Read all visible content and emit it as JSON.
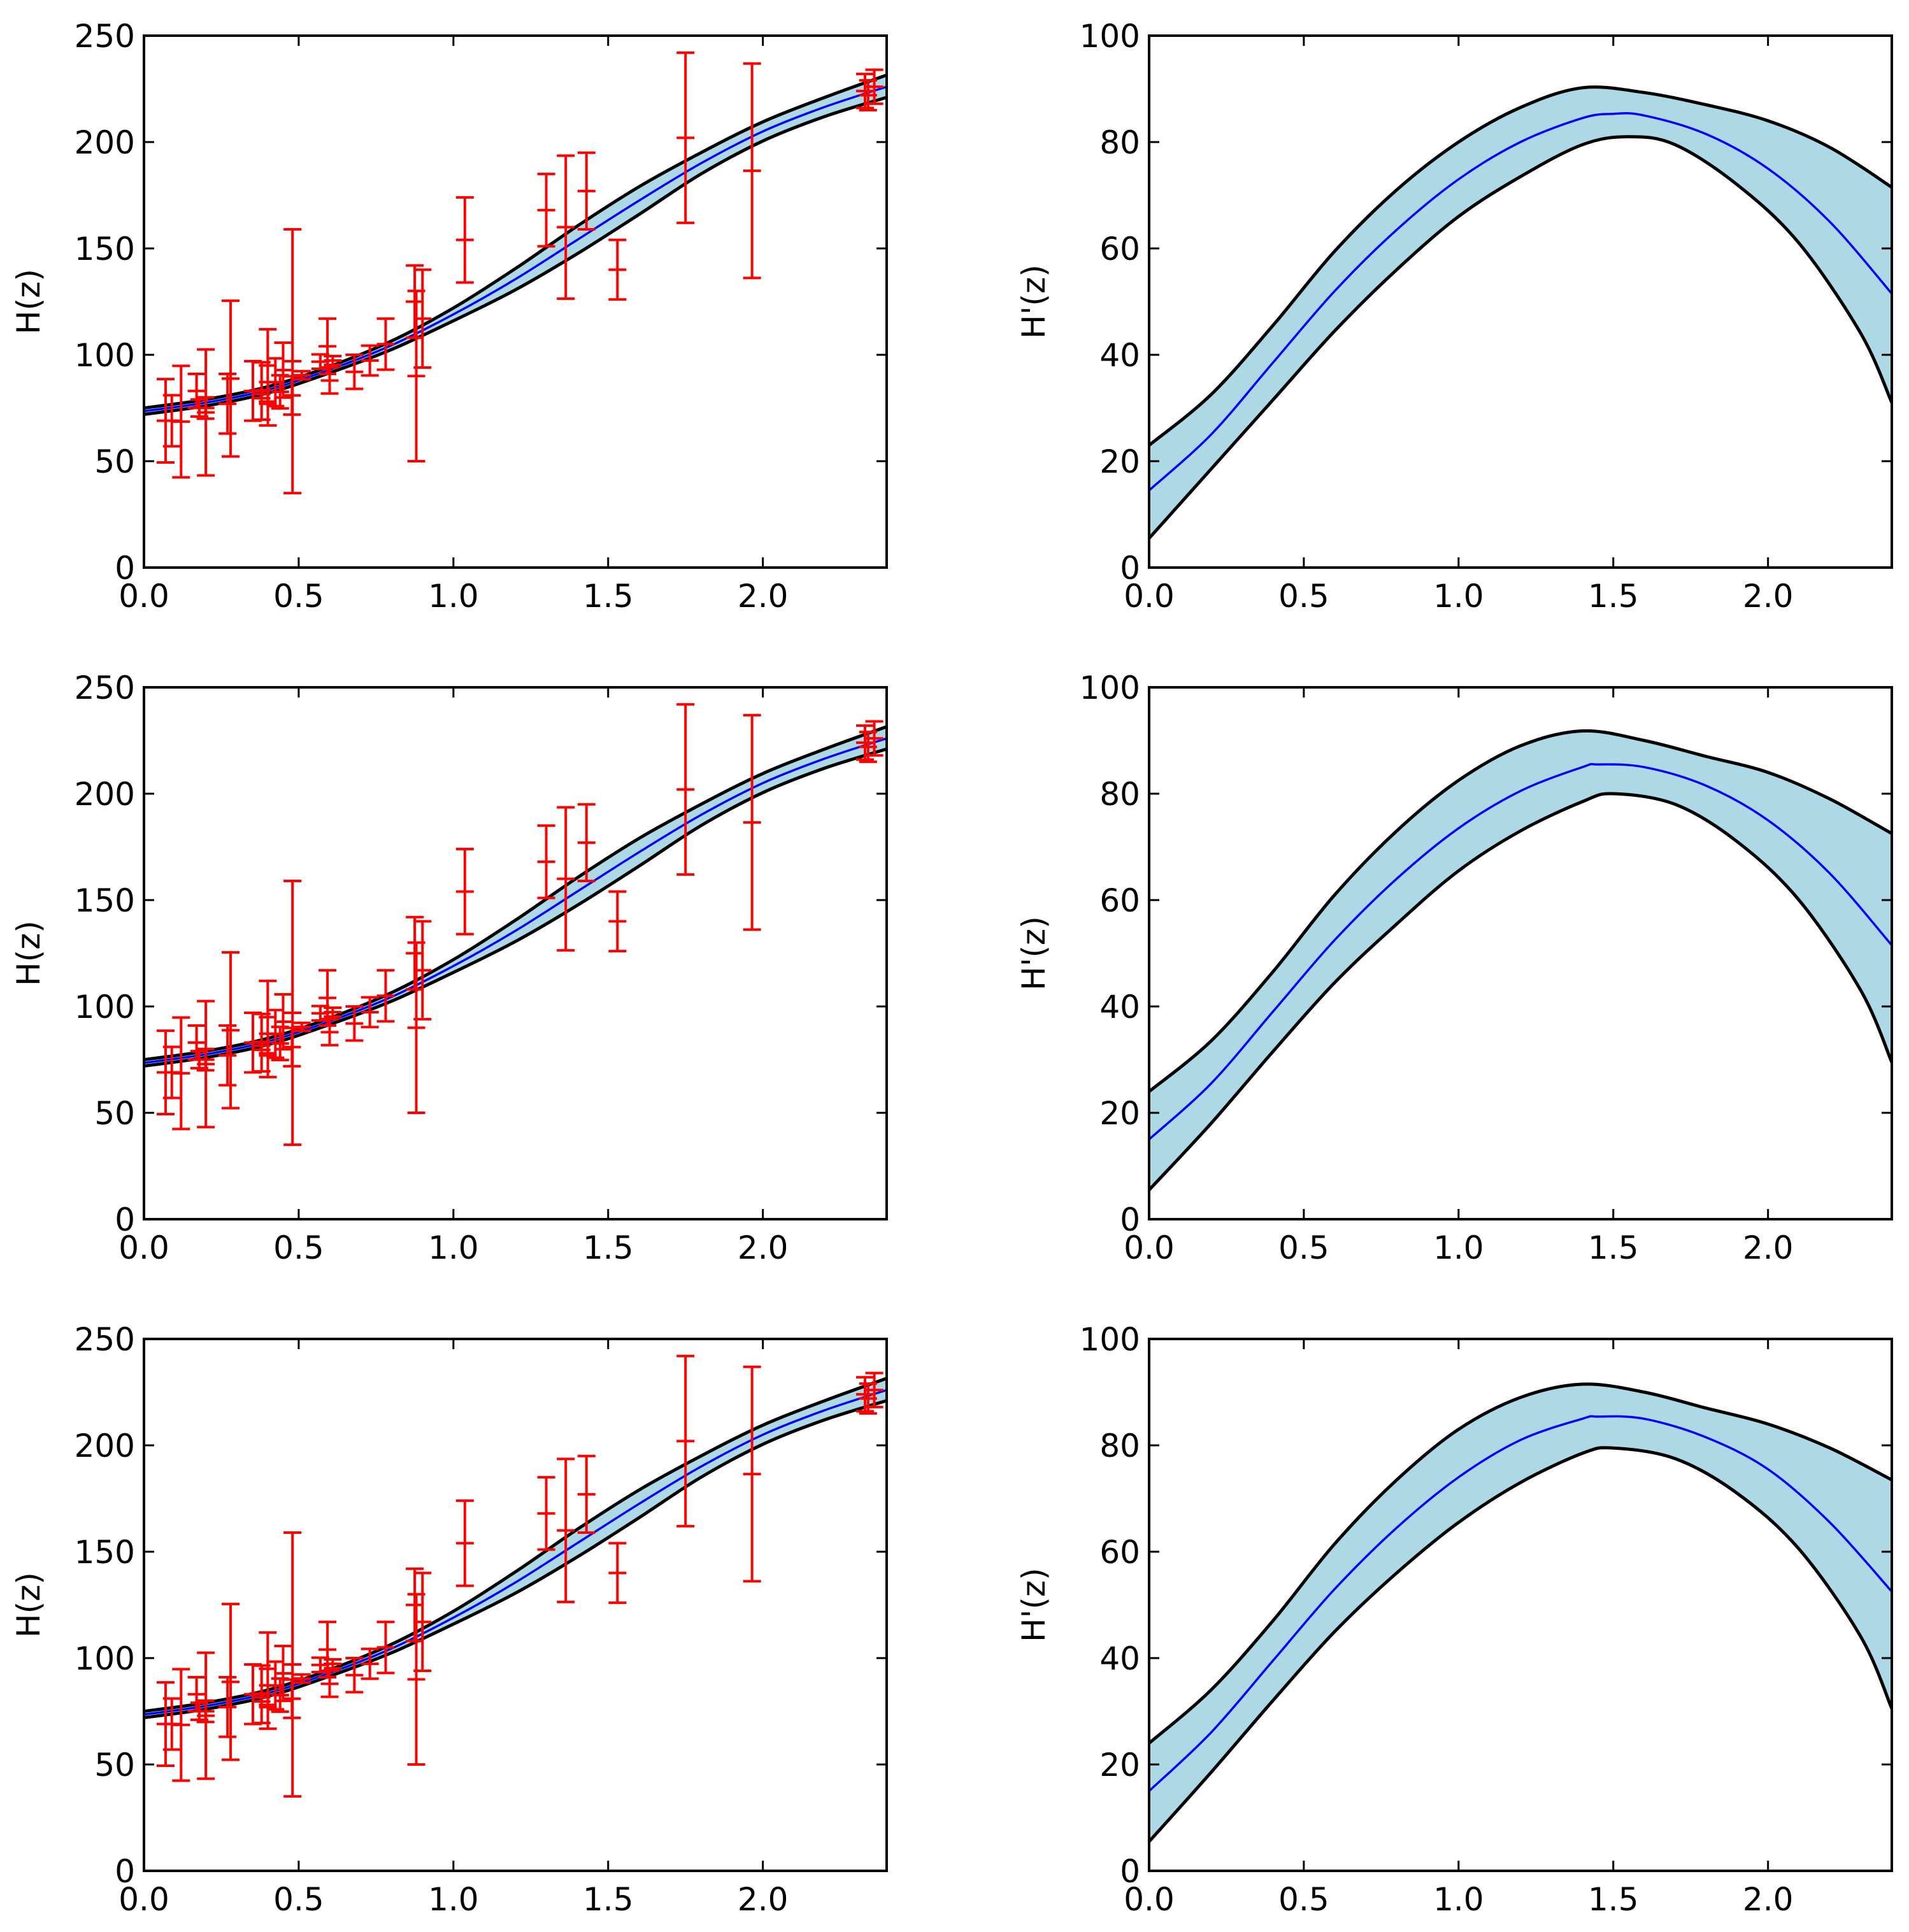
{
  "colors": {
    "band_fill": "#add8e6",
    "band_edge": "#000000",
    "mean_line": "#0000ff",
    "data_points": "#ff0000",
    "axes": "#000000"
  },
  "h_data": {
    "z": [
      0.07,
      0.09,
      0.12,
      0.17,
      0.179,
      0.199,
      0.2,
      0.27,
      0.28,
      0.352,
      0.38,
      0.3802,
      0.4,
      0.4004,
      0.4247,
      0.44,
      0.4497,
      0.4783,
      0.48,
      0.51,
      0.57,
      0.593,
      0.6,
      0.61,
      0.68,
      0.73,
      0.781,
      0.875,
      0.88,
      0.9,
      1.037,
      1.3,
      1.363,
      1.43,
      1.53,
      1.75,
      1.965,
      2.33,
      2.34,
      2.36
    ],
    "H": [
      69,
      69,
      68.6,
      83,
      75,
      75,
      72.9,
      77,
      88.8,
      83,
      81.5,
      83,
      95,
      77,
      87.1,
      82.6,
      92.8,
      80.9,
      97,
      90.4,
      96.8,
      104,
      87.9,
      97.3,
      92,
      97.3,
      105,
      125,
      90,
      117,
      154,
      168,
      160,
      177,
      140,
      202,
      186.5,
      224,
      222,
      226
    ],
    "err": [
      19.6,
      12,
      26.2,
      8,
      4,
      5,
      29.6,
      14,
      36.6,
      14,
      1.9,
      13.5,
      17,
      10.2,
      11.2,
      7.8,
      12.9,
      9,
      62,
      1.9,
      3.4,
      13,
      6.1,
      2.1,
      8,
      7,
      12,
      17,
      40,
      23,
      20,
      17,
      33.6,
      18,
      14,
      40,
      50.4,
      8,
      7,
      8
    ]
  },
  "charts": [
    {
      "id": "top-left",
      "type": "line",
      "x_domain": [
        0.0,
        2.4
      ],
      "ylim": [
        0,
        250
      ],
      "ylabel": "H(z)",
      "xticks": [
        "0.0",
        "0.5",
        "1.0",
        "1.5",
        "2.0"
      ],
      "yticks": [
        "0",
        "50",
        "100",
        "150",
        "200",
        "250"
      ],
      "show_data": true,
      "mean": [
        [
          0,
          73.5
        ],
        [
          0.2,
          77.5
        ],
        [
          0.4,
          83.5
        ],
        [
          0.6,
          93
        ],
        [
          0.8,
          104.5
        ],
        [
          1.0,
          119
        ],
        [
          1.2,
          135.5
        ],
        [
          1.4,
          154
        ],
        [
          1.6,
          172.5
        ],
        [
          1.8,
          190
        ],
        [
          2.0,
          205
        ],
        [
          2.2,
          216.5
        ],
        [
          2.4,
          226
        ]
      ],
      "upper": [
        [
          0,
          75
        ],
        [
          0.2,
          79
        ],
        [
          0.4,
          85
        ],
        [
          0.6,
          94.5
        ],
        [
          0.8,
          106.5
        ],
        [
          1.0,
          122
        ],
        [
          1.2,
          140.5
        ],
        [
          1.4,
          160.5
        ],
        [
          1.6,
          179
        ],
        [
          1.8,
          195
        ],
        [
          2.0,
          209.5
        ],
        [
          2.2,
          221
        ],
        [
          2.4,
          231.5
        ]
      ],
      "lower": [
        [
          0,
          72
        ],
        [
          0.2,
          76
        ],
        [
          0.4,
          82
        ],
        [
          0.6,
          91.5
        ],
        [
          0.8,
          102.5
        ],
        [
          1.0,
          116
        ],
        [
          1.2,
          130.5
        ],
        [
          1.4,
          147.5
        ],
        [
          1.6,
          166
        ],
        [
          1.8,
          185
        ],
        [
          2.0,
          200.5
        ],
        [
          2.2,
          212
        ],
        [
          2.4,
          221
        ]
      ]
    },
    {
      "id": "top-right",
      "type": "line",
      "x_domain": [
        0.0,
        2.4
      ],
      "ylim": [
        0,
        100
      ],
      "ylabel": "H'(z)",
      "xticks": [
        "0.0",
        "0.5",
        "1.0",
        "1.5",
        "2.0"
      ],
      "yticks": [
        "0",
        "20",
        "40",
        "60",
        "80",
        "100"
      ],
      "show_data": false,
      "mean": [
        [
          0,
          14.5
        ],
        [
          0.2,
          25
        ],
        [
          0.4,
          38.5
        ],
        [
          0.6,
          52
        ],
        [
          0.8,
          63.5
        ],
        [
          1.0,
          73
        ],
        [
          1.2,
          80
        ],
        [
          1.4,
          84.5
        ],
        [
          1.5,
          85.3
        ],
        [
          1.6,
          85
        ],
        [
          1.8,
          81.5
        ],
        [
          2.0,
          75
        ],
        [
          2.2,
          65
        ],
        [
          2.4,
          51.5
        ]
      ],
      "upper": [
        [
          0,
          23
        ],
        [
          0.2,
          32.5
        ],
        [
          0.4,
          45.5
        ],
        [
          0.6,
          59.5
        ],
        [
          0.8,
          71
        ],
        [
          1.0,
          80
        ],
        [
          1.2,
          86.5
        ],
        [
          1.4,
          90.2
        ],
        [
          1.6,
          89.3
        ],
        [
          1.8,
          87
        ],
        [
          2.0,
          84
        ],
        [
          2.2,
          79
        ],
        [
          2.4,
          71.5
        ]
      ],
      "lower": [
        [
          0,
          5.5
        ],
        [
          0.2,
          18.5
        ],
        [
          0.4,
          31.5
        ],
        [
          0.6,
          44.5
        ],
        [
          0.8,
          56
        ],
        [
          1.0,
          66
        ],
        [
          1.2,
          73.5
        ],
        [
          1.4,
          79.5
        ],
        [
          1.55,
          81
        ],
        [
          1.7,
          79.5
        ],
        [
          1.9,
          72
        ],
        [
          2.1,
          61
        ],
        [
          2.3,
          44
        ],
        [
          2.4,
          31
        ]
      ]
    },
    {
      "id": "mid-left",
      "type": "line",
      "x_domain": [
        0.0,
        2.4
      ],
      "ylim": [
        0,
        250
      ],
      "ylabel": "H(z)",
      "xticks": [
        "0.0",
        "0.5",
        "1.0",
        "1.5",
        "2.0"
      ],
      "yticks": [
        "0",
        "50",
        "100",
        "150",
        "200",
        "250"
      ],
      "show_data": true,
      "mean": [
        [
          0,
          73.5
        ],
        [
          0.2,
          77.5
        ],
        [
          0.4,
          83.5
        ],
        [
          0.6,
          93
        ],
        [
          0.8,
          104.5
        ],
        [
          1.0,
          119
        ],
        [
          1.2,
          135.5
        ],
        [
          1.4,
          154
        ],
        [
          1.6,
          172.5
        ],
        [
          1.8,
          190
        ],
        [
          2.0,
          205
        ],
        [
          2.2,
          216.5
        ],
        [
          2.4,
          226
        ]
      ],
      "upper": [
        [
          0,
          75
        ],
        [
          0.2,
          79
        ],
        [
          0.4,
          85
        ],
        [
          0.6,
          94.5
        ],
        [
          0.8,
          106.5
        ],
        [
          1.0,
          122
        ],
        [
          1.2,
          140.5
        ],
        [
          1.4,
          160.5
        ],
        [
          1.6,
          179
        ],
        [
          1.8,
          195
        ],
        [
          2.0,
          209.5
        ],
        [
          2.2,
          221
        ],
        [
          2.4,
          231.5
        ]
      ],
      "lower": [
        [
          0,
          72
        ],
        [
          0.2,
          76
        ],
        [
          0.4,
          82
        ],
        [
          0.6,
          91.5
        ],
        [
          0.8,
          102.5
        ],
        [
          1.0,
          116
        ],
        [
          1.2,
          130.5
        ],
        [
          1.4,
          147.5
        ],
        [
          1.6,
          166
        ],
        [
          1.8,
          185
        ],
        [
          2.0,
          200.5
        ],
        [
          2.2,
          212
        ],
        [
          2.4,
          221
        ]
      ]
    },
    {
      "id": "mid-right",
      "type": "line",
      "x_domain": [
        0.0,
        2.4
      ],
      "ylim": [
        0,
        100
      ],
      "ylabel": "H'(z)",
      "xticks": [
        "0.0",
        "0.5",
        "1.0",
        "1.5",
        "2.0"
      ],
      "yticks": [
        "0",
        "20",
        "40",
        "60",
        "80",
        "100"
      ],
      "show_data": false,
      "mean": [
        [
          0,
          15
        ],
        [
          0.2,
          25.5
        ],
        [
          0.4,
          39
        ],
        [
          0.6,
          52.5
        ],
        [
          0.8,
          64
        ],
        [
          1.0,
          73.5
        ],
        [
          1.2,
          80.5
        ],
        [
          1.4,
          85
        ],
        [
          1.45,
          85.5
        ],
        [
          1.6,
          85
        ],
        [
          1.8,
          81.5
        ],
        [
          2.0,
          75
        ],
        [
          2.2,
          65
        ],
        [
          2.4,
          51.5
        ]
      ],
      "upper": [
        [
          0,
          24
        ],
        [
          0.2,
          33.5
        ],
        [
          0.4,
          46.5
        ],
        [
          0.6,
          61
        ],
        [
          0.8,
          73
        ],
        [
          1.0,
          82.5
        ],
        [
          1.2,
          89
        ],
        [
          1.4,
          91.8
        ],
        [
          1.6,
          90
        ],
        [
          1.8,
          87
        ],
        [
          2.0,
          84
        ],
        [
          2.2,
          79
        ],
        [
          2.4,
          72.5
        ]
      ],
      "lower": [
        [
          0,
          5.5
        ],
        [
          0.2,
          18
        ],
        [
          0.4,
          31.5
        ],
        [
          0.6,
          44.5
        ],
        [
          0.8,
          55.5
        ],
        [
          1.0,
          65.5
        ],
        [
          1.2,
          73
        ],
        [
          1.4,
          78.5
        ],
        [
          1.5,
          80
        ],
        [
          1.7,
          78
        ],
        [
          1.9,
          71
        ],
        [
          2.1,
          60
        ],
        [
          2.3,
          43
        ],
        [
          2.4,
          29.5
        ]
      ]
    },
    {
      "id": "bottom-left",
      "type": "line",
      "x_domain": [
        0.0,
        2.4
      ],
      "ylim": [
        0,
        250
      ],
      "ylabel": "H(z)",
      "xticks": [
        "0.0",
        "0.5",
        "1.0",
        "1.5",
        "2.0"
      ],
      "yticks": [
        "0",
        "50",
        "100",
        "150",
        "200",
        "250"
      ],
      "show_data": true,
      "mean": [
        [
          0,
          73.5
        ],
        [
          0.2,
          77.5
        ],
        [
          0.4,
          83.5
        ],
        [
          0.6,
          93
        ],
        [
          0.8,
          104.5
        ],
        [
          1.0,
          119
        ],
        [
          1.2,
          135.5
        ],
        [
          1.4,
          154
        ],
        [
          1.6,
          172.5
        ],
        [
          1.8,
          190
        ],
        [
          2.0,
          205
        ],
        [
          2.2,
          216.5
        ],
        [
          2.4,
          226
        ]
      ],
      "upper": [
        [
          0,
          75
        ],
        [
          0.2,
          79
        ],
        [
          0.4,
          85
        ],
        [
          0.6,
          94.5
        ],
        [
          0.8,
          106.5
        ],
        [
          1.0,
          122
        ],
        [
          1.2,
          140.5
        ],
        [
          1.4,
          160.5
        ],
        [
          1.6,
          179
        ],
        [
          1.8,
          195
        ],
        [
          2.0,
          209.5
        ],
        [
          2.2,
          221
        ],
        [
          2.4,
          231.5
        ]
      ],
      "lower": [
        [
          0,
          72
        ],
        [
          0.2,
          76
        ],
        [
          0.4,
          82
        ],
        [
          0.6,
          91.5
        ],
        [
          0.8,
          102.5
        ],
        [
          1.0,
          116
        ],
        [
          1.2,
          130.5
        ],
        [
          1.4,
          147.5
        ],
        [
          1.6,
          166
        ],
        [
          1.8,
          185
        ],
        [
          2.0,
          200.5
        ],
        [
          2.2,
          212
        ],
        [
          2.4,
          221
        ]
      ]
    },
    {
      "id": "bottom-right",
      "type": "line",
      "x_domain": [
        0.0,
        2.4
      ],
      "ylim": [
        0,
        100
      ],
      "ylabel": "H'(z)",
      "xticks": [
        "0.0",
        "0.5",
        "1.0",
        "1.5",
        "2.0"
      ],
      "yticks": [
        "0",
        "20",
        "40",
        "60",
        "80",
        "100"
      ],
      "show_data": false,
      "mean": [
        [
          0,
          15
        ],
        [
          0.2,
          26
        ],
        [
          0.4,
          39.5
        ],
        [
          0.6,
          53
        ],
        [
          0.8,
          64.5
        ],
        [
          1.0,
          74
        ],
        [
          1.2,
          81
        ],
        [
          1.4,
          85
        ],
        [
          1.45,
          85.4
        ],
        [
          1.6,
          85
        ],
        [
          1.8,
          81.5
        ],
        [
          2.0,
          75.5
        ],
        [
          2.2,
          65.5
        ],
        [
          2.4,
          52.5
        ]
      ],
      "upper": [
        [
          0,
          24
        ],
        [
          0.2,
          34
        ],
        [
          0.4,
          47
        ],
        [
          0.6,
          61.5
        ],
        [
          0.8,
          73.5
        ],
        [
          1.0,
          83
        ],
        [
          1.2,
          89
        ],
        [
          1.4,
          91.5
        ],
        [
          1.6,
          90
        ],
        [
          1.8,
          87
        ],
        [
          2.0,
          84
        ],
        [
          2.2,
          79.5
        ],
        [
          2.4,
          73.5
        ]
      ],
      "lower": [
        [
          0,
          5.5
        ],
        [
          0.2,
          18.5
        ],
        [
          0.4,
          32
        ],
        [
          0.6,
          45
        ],
        [
          0.8,
          56
        ],
        [
          1.0,
          65.5
        ],
        [
          1.2,
          73
        ],
        [
          1.4,
          78.5
        ],
        [
          1.5,
          79.5
        ],
        [
          1.7,
          77.5
        ],
        [
          1.9,
          71
        ],
        [
          2.1,
          60.5
        ],
        [
          2.3,
          44
        ],
        [
          2.4,
          30.5
        ]
      ]
    }
  ]
}
